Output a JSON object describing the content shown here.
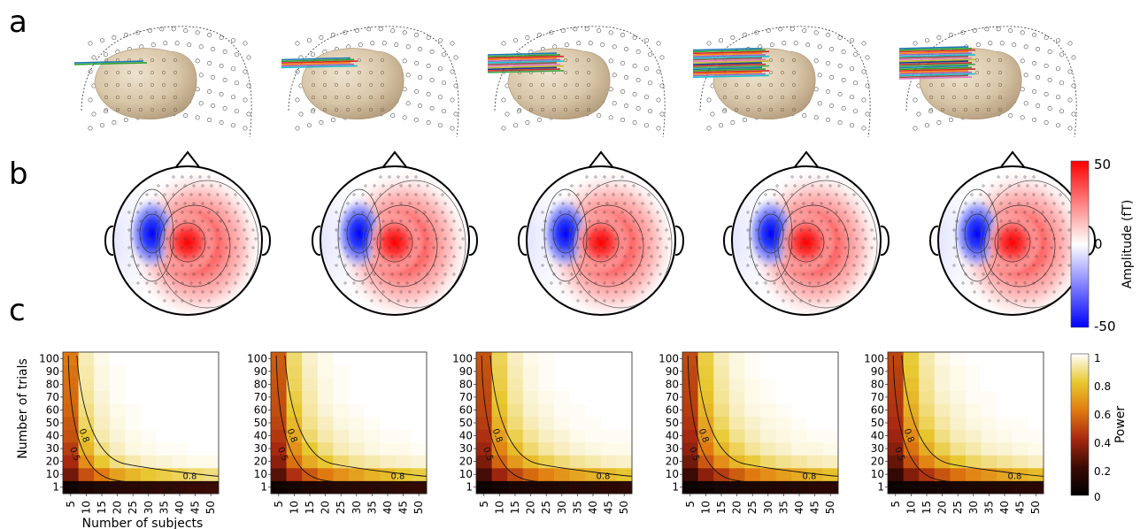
{
  "panels": {
    "a": "a",
    "b": "b",
    "c": "c"
  },
  "topo_colorbar": {
    "label": "Amplitude (fT)",
    "ticks": [
      "50",
      "0",
      "-50"
    ],
    "colors": {
      "neg": "#0000ff",
      "mid": "#ffffff",
      "pos": "#ff0000"
    }
  },
  "power_colorbar": {
    "label": "Power",
    "ticks": [
      "1",
      "0.8",
      "0.6",
      "0.4",
      "0.2",
      "0"
    ]
  },
  "grid_axes": {
    "xlabel": "Number of subjects",
    "ylabel": "Number of trials",
    "x_ticks": [
      "5",
      "10",
      "15",
      "20",
      "25",
      "30",
      "35",
      "40",
      "45",
      "50"
    ],
    "y_ticks": [
      "1",
      "10",
      "20",
      "30",
      "40",
      "50",
      "60",
      "70",
      "80",
      "90",
      "100"
    ]
  },
  "contour_labels": [
    "0.8",
    "0.5",
    "0.1"
  ],
  "chart_data": {
    "type": "heatmap",
    "colormap": "hot",
    "x": [
      5,
      10,
      15,
      20,
      25,
      30,
      35,
      40,
      45,
      50
    ],
    "y": [
      1,
      10,
      20,
      30,
      40,
      50,
      60,
      70,
      80,
      90,
      100
    ],
    "zlim": [
      0,
      1
    ],
    "grids": [
      {
        "power": [
          [
            0.05,
            0.1,
            0.12,
            0.14,
            0.15,
            0.16,
            0.17,
            0.18,
            0.19,
            0.2
          ],
          [
            0.3,
            0.5,
            0.6,
            0.7,
            0.75,
            0.8,
            0.82,
            0.84,
            0.86,
            0.88
          ],
          [
            0.4,
            0.65,
            0.8,
            0.88,
            0.92,
            0.95,
            0.96,
            0.97,
            0.98,
            0.98
          ],
          [
            0.45,
            0.75,
            0.88,
            0.94,
            0.97,
            0.98,
            0.99,
            0.99,
            1,
            1
          ],
          [
            0.5,
            0.8,
            0.92,
            0.96,
            0.98,
            0.99,
            1,
            1,
            1,
            1
          ],
          [
            0.52,
            0.85,
            0.94,
            0.97,
            0.99,
            1,
            1,
            1,
            1,
            1
          ],
          [
            0.55,
            0.88,
            0.95,
            0.98,
            0.99,
            1,
            1,
            1,
            1,
            1
          ],
          [
            0.56,
            0.9,
            0.96,
            0.99,
            1,
            1,
            1,
            1,
            1,
            1
          ],
          [
            0.57,
            0.91,
            0.97,
            0.99,
            1,
            1,
            1,
            1,
            1,
            1
          ],
          [
            0.58,
            0.92,
            0.97,
            0.99,
            1,
            1,
            1,
            1,
            1,
            1
          ],
          [
            0.6,
            0.93,
            0.98,
            1,
            1,
            1,
            1,
            1,
            1,
            1
          ]
        ]
      },
      {
        "power": [
          [
            0.05,
            0.08,
            0.1,
            0.12,
            0.13,
            0.14,
            0.15,
            0.16,
            0.17,
            0.18
          ],
          [
            0.25,
            0.42,
            0.52,
            0.6,
            0.66,
            0.7,
            0.74,
            0.77,
            0.8,
            0.82
          ],
          [
            0.35,
            0.58,
            0.72,
            0.8,
            0.86,
            0.9,
            0.92,
            0.94,
            0.95,
            0.96
          ],
          [
            0.4,
            0.66,
            0.8,
            0.88,
            0.93,
            0.95,
            0.97,
            0.98,
            0.98,
            0.99
          ],
          [
            0.44,
            0.72,
            0.86,
            0.92,
            0.95,
            0.97,
            0.98,
            0.99,
            0.99,
            1
          ],
          [
            0.47,
            0.76,
            0.89,
            0.94,
            0.97,
            0.98,
            0.99,
            1,
            1,
            1
          ],
          [
            0.49,
            0.8,
            0.91,
            0.96,
            0.98,
            0.99,
            1,
            1,
            1,
            1
          ],
          [
            0.5,
            0.82,
            0.92,
            0.97,
            0.99,
            1,
            1,
            1,
            1,
            1
          ],
          [
            0.51,
            0.84,
            0.93,
            0.97,
            0.99,
            1,
            1,
            1,
            1,
            1
          ],
          [
            0.52,
            0.85,
            0.94,
            0.98,
            0.99,
            1,
            1,
            1,
            1,
            1
          ],
          [
            0.53,
            0.86,
            0.95,
            0.98,
            1,
            1,
            1,
            1,
            1,
            1
          ]
        ]
      },
      {
        "power": [
          [
            0.04,
            0.07,
            0.09,
            0.1,
            0.11,
            0.12,
            0.13,
            0.14,
            0.15,
            0.16
          ],
          [
            0.22,
            0.38,
            0.48,
            0.56,
            0.62,
            0.67,
            0.71,
            0.74,
            0.77,
            0.8
          ],
          [
            0.32,
            0.55,
            0.68,
            0.77,
            0.83,
            0.87,
            0.9,
            0.92,
            0.94,
            0.95
          ],
          [
            0.38,
            0.63,
            0.77,
            0.86,
            0.91,
            0.94,
            0.96,
            0.97,
            0.98,
            0.98
          ],
          [
            0.42,
            0.69,
            0.83,
            0.9,
            0.94,
            0.96,
            0.98,
            0.99,
            0.99,
            0.99
          ],
          [
            0.45,
            0.74,
            0.87,
            0.93,
            0.96,
            0.98,
            0.99,
            0.99,
            1,
            1
          ],
          [
            0.47,
            0.78,
            0.89,
            0.95,
            0.97,
            0.99,
            0.99,
            1,
            1,
            1
          ],
          [
            0.48,
            0.8,
            0.91,
            0.96,
            0.98,
            0.99,
            1,
            1,
            1,
            1
          ],
          [
            0.49,
            0.82,
            0.92,
            0.97,
            0.99,
            1,
            1,
            1,
            1,
            1
          ],
          [
            0.5,
            0.83,
            0.93,
            0.97,
            0.99,
            1,
            1,
            1,
            1,
            1
          ],
          [
            0.51,
            0.84,
            0.94,
            0.98,
            0.99,
            1,
            1,
            1,
            1,
            1
          ]
        ]
      },
      {
        "power": [
          [
            0.04,
            0.06,
            0.08,
            0.09,
            0.1,
            0.11,
            0.12,
            0.13,
            0.14,
            0.15
          ],
          [
            0.2,
            0.35,
            0.45,
            0.53,
            0.6,
            0.65,
            0.69,
            0.72,
            0.75,
            0.78
          ],
          [
            0.3,
            0.52,
            0.65,
            0.75,
            0.81,
            0.86,
            0.89,
            0.91,
            0.93,
            0.94
          ],
          [
            0.36,
            0.6,
            0.75,
            0.84,
            0.9,
            0.93,
            0.95,
            0.97,
            0.97,
            0.98
          ],
          [
            0.4,
            0.66,
            0.81,
            0.89,
            0.93,
            0.96,
            0.97,
            0.98,
            0.99,
            0.99
          ],
          [
            0.43,
            0.71,
            0.85,
            0.92,
            0.95,
            0.97,
            0.98,
            0.99,
            1,
            1
          ],
          [
            0.45,
            0.75,
            0.88,
            0.94,
            0.97,
            0.98,
            0.99,
            1,
            1,
            1
          ],
          [
            0.46,
            0.78,
            0.9,
            0.95,
            0.98,
            0.99,
            1,
            1,
            1,
            1
          ],
          [
            0.47,
            0.8,
            0.91,
            0.96,
            0.98,
            0.99,
            1,
            1,
            1,
            1
          ],
          [
            0.48,
            0.81,
            0.92,
            0.97,
            0.99,
            1,
            1,
            1,
            1,
            1
          ],
          [
            0.49,
            0.82,
            0.93,
            0.97,
            0.99,
            1,
            1,
            1,
            1,
            1
          ]
        ]
      },
      {
        "power": [
          [
            0.04,
            0.06,
            0.07,
            0.08,
            0.09,
            0.1,
            0.11,
            0.12,
            0.13,
            0.14
          ],
          [
            0.18,
            0.33,
            0.43,
            0.51,
            0.58,
            0.63,
            0.67,
            0.71,
            0.74,
            0.77
          ],
          [
            0.28,
            0.5,
            0.63,
            0.73,
            0.8,
            0.85,
            0.88,
            0.9,
            0.92,
            0.94
          ],
          [
            0.34,
            0.58,
            0.73,
            0.83,
            0.89,
            0.92,
            0.95,
            0.96,
            0.97,
            0.98
          ],
          [
            0.38,
            0.64,
            0.79,
            0.88,
            0.93,
            0.95,
            0.97,
            0.98,
            0.99,
            0.99
          ],
          [
            0.41,
            0.69,
            0.84,
            0.91,
            0.95,
            0.97,
            0.98,
            0.99,
            0.99,
            1
          ],
          [
            0.43,
            0.73,
            0.87,
            0.93,
            0.96,
            0.98,
            0.99,
            1,
            1,
            1
          ],
          [
            0.44,
            0.76,
            0.89,
            0.95,
            0.97,
            0.99,
            0.99,
            1,
            1,
            1
          ],
          [
            0.45,
            0.78,
            0.9,
            0.96,
            0.98,
            0.99,
            1,
            1,
            1,
            1
          ],
          [
            0.46,
            0.8,
            0.91,
            0.96,
            0.98,
            0.99,
            1,
            1,
            1,
            1
          ],
          [
            0.47,
            0.81,
            0.92,
            0.97,
            0.99,
            1,
            1,
            1,
            1,
            1
          ]
        ]
      }
    ]
  }
}
